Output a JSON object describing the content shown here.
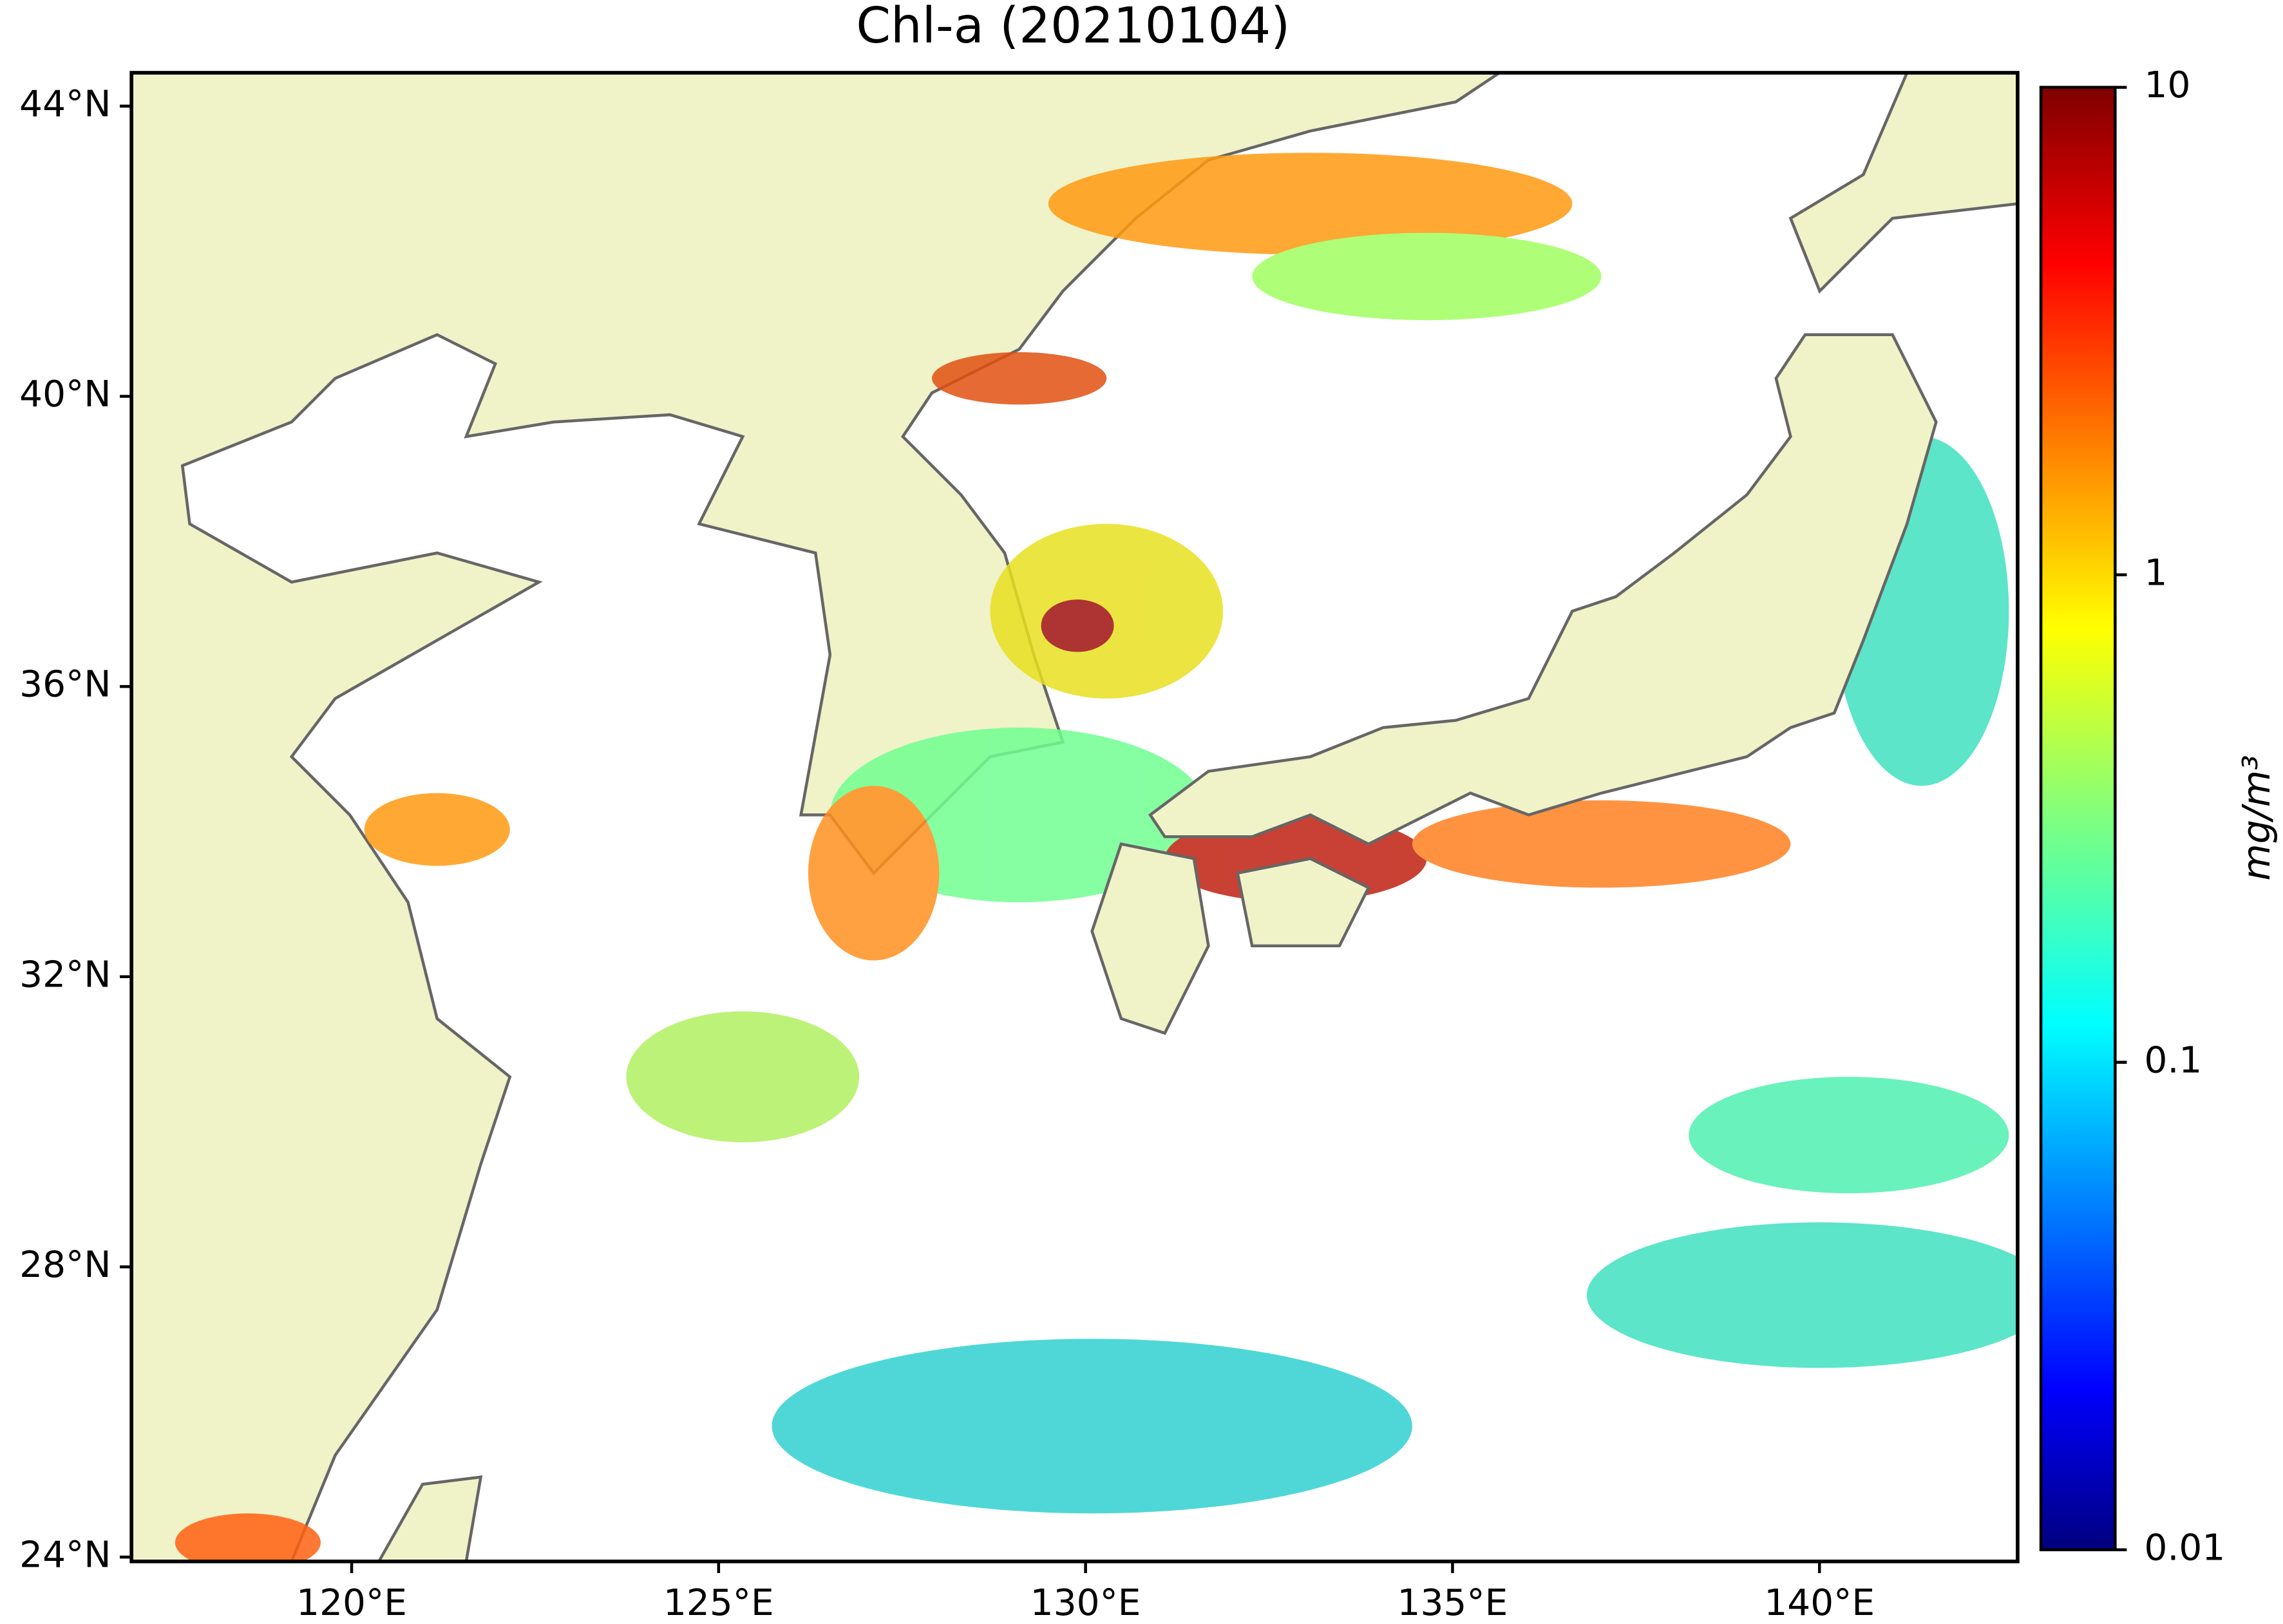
{
  "title": "Chl-a (20210104)",
  "map": {
    "lon_range": [
      117,
      142.7
    ],
    "lat_range": [
      23.94,
      44.46
    ],
    "lon_ticks": [
      {
        "value": 120,
        "label": "120°E"
      },
      {
        "value": 125,
        "label": "125°E"
      },
      {
        "value": 130,
        "label": "130°E"
      },
      {
        "value": 135,
        "label": "135°E"
      },
      {
        "value": 140,
        "label": "140°E"
      }
    ],
    "lat_ticks": [
      {
        "value": 24,
        "label": "24°N"
      },
      {
        "value": 28,
        "label": "28°N"
      },
      {
        "value": 32,
        "label": "32°N"
      },
      {
        "value": 36,
        "label": "36°N"
      },
      {
        "value": 40,
        "label": "40°N"
      },
      {
        "value": 44,
        "label": "44°N"
      }
    ]
  },
  "colorbar": {
    "label": "mg/m³",
    "scale": "log",
    "range": [
      0.01,
      10
    ],
    "ticks": [
      0.01,
      0.1,
      1,
      10
    ]
  }
}
